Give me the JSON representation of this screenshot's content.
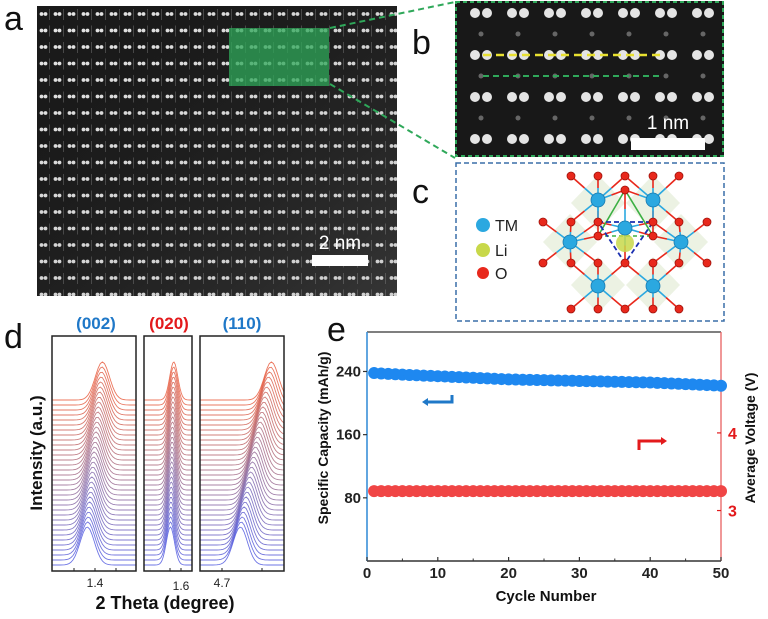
{
  "figure": {
    "panels": {
      "a": {
        "label": "a",
        "scale_bar": "2 nm",
        "image": "atomic-resolution STEM lattice image",
        "highlight_color": "#2fa85a"
      },
      "b": {
        "label": "b",
        "scale_bar": "1 nm",
        "image": "magnified lattice region",
        "guide_lines": [
          "yellow dashed",
          "green dashed"
        ]
      },
      "c": {
        "label": "c",
        "legend": [
          {
            "label": "TM",
            "color": "#2ba8e0"
          },
          {
            "label": "Li",
            "color": "#c8d84a"
          },
          {
            "label": "O",
            "color": "#e8281c"
          }
        ]
      },
      "d": {
        "label": "d",
        "peaks": [
          {
            "label": "(002)",
            "color": "#1f78c8",
            "tick": "1.4"
          },
          {
            "label": "(020)",
            "color": "#e31a1c",
            "tick": "1.6"
          },
          {
            "label": "(110)",
            "color": "#1f78c8",
            "tick": "4.7"
          }
        ],
        "ylabel": "Intensity (a.u.)",
        "xlabel": "2 Theta (degree)"
      },
      "e": {
        "label": "e"
      }
    }
  },
  "chart_data": [
    {
      "type": "scatter",
      "title": "",
      "xlabel": "Cycle Number",
      "ylabel": "Specific Capacity (mAh/g)",
      "y2label": "Average Voltage (V)",
      "xlim": [
        0,
        50
      ],
      "ylim": [
        0,
        290
      ],
      "y2lim": [
        2.35,
        5.3
      ],
      "xticks": [
        "0",
        "10",
        "20",
        "30",
        "40",
        "50"
      ],
      "yticks": [
        "80",
        "160",
        "240"
      ],
      "y2ticks": [
        "3",
        "4"
      ],
      "grid": false,
      "series": [
        {
          "name": "Specific Capacity",
          "axis": "left",
          "color": "#1e88f0",
          "x": [
            1,
            5,
            10,
            15,
            20,
            25,
            30,
            35,
            40,
            45,
            50
          ],
          "values": [
            238,
            236,
            234,
            232,
            230,
            229,
            228,
            227,
            226,
            224,
            222
          ]
        },
        {
          "name": "Average Voltage",
          "axis": "right",
          "color": "#f04545",
          "x": [
            1,
            5,
            10,
            15,
            20,
            25,
            30,
            35,
            40,
            45,
            50
          ],
          "values": [
            3.25,
            3.25,
            3.25,
            3.25,
            3.25,
            3.25,
            3.25,
            3.25,
            3.25,
            3.25,
            3.25
          ]
        }
      ],
      "annotations": [
        {
          "type": "arrow",
          "direction": "left",
          "color": "#1f78c8",
          "meaning": "capacity on left axis"
        },
        {
          "type": "arrow",
          "direction": "right",
          "color": "#e31a1c",
          "meaning": "voltage on right axis"
        }
      ]
    }
  ]
}
